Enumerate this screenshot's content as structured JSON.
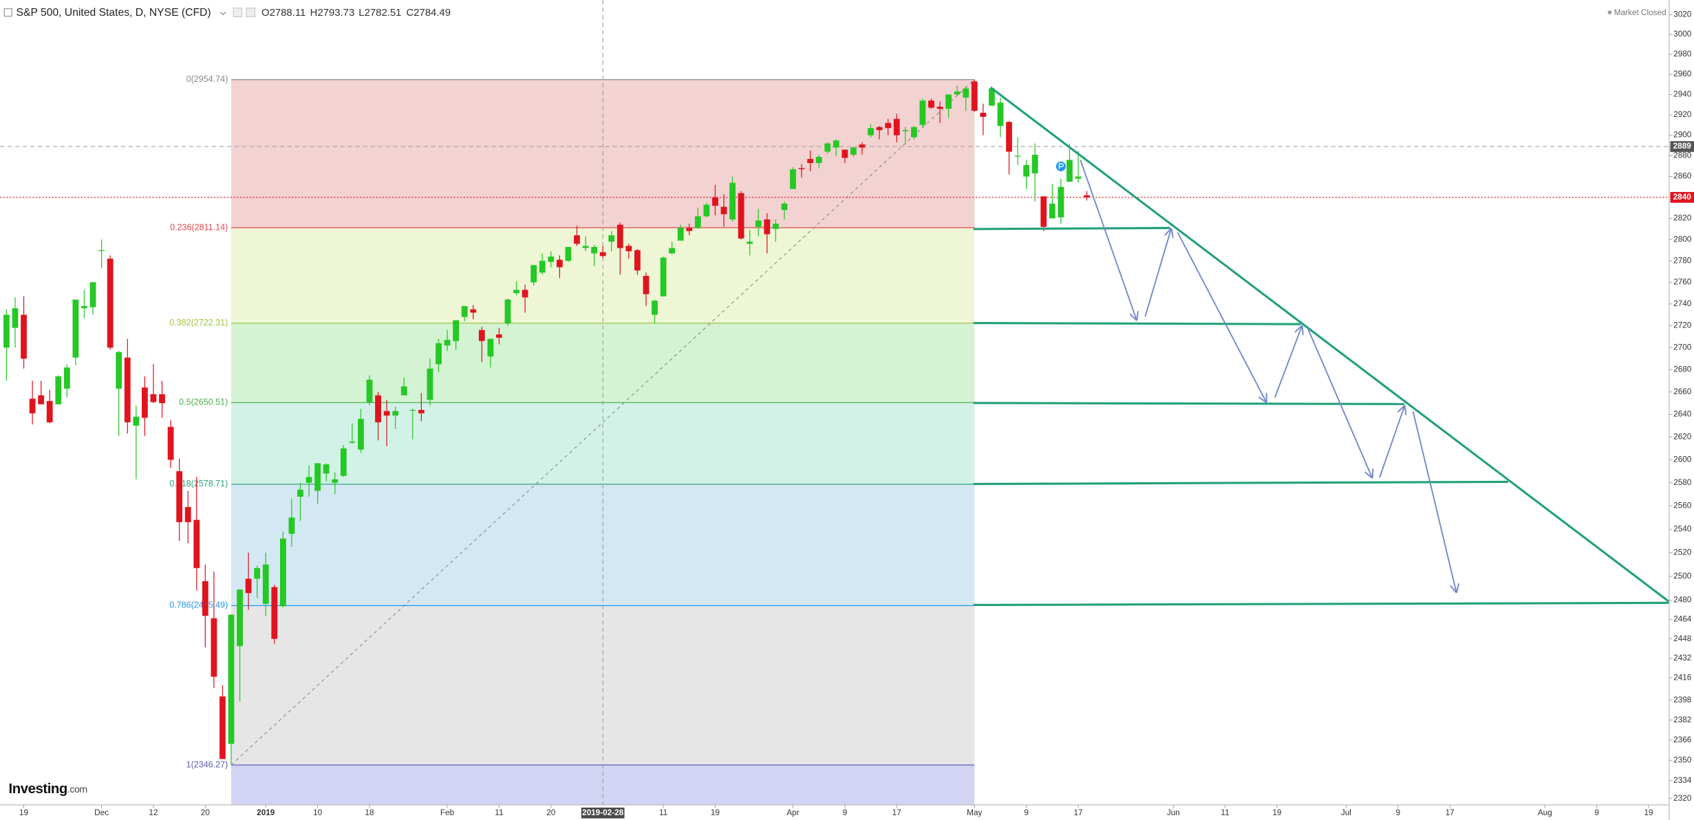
{
  "chart_data": {
    "type": "candlestick",
    "title": "S&P 500, United States, D, NYSE (CFD)",
    "legend_values": [
      "O2788.11",
      "H2793.73",
      "L2782.51",
      "C2784.49"
    ],
    "status": "Market Closed",
    "logo": {
      "name": "Investing",
      "suffix": ".com"
    },
    "up_color": "#25c825",
    "down_color": "#e0141e",
    "log": true,
    "grid": false,
    "ylim": [
      2315,
      3035
    ],
    "yticks": [
      3020,
      3000,
      2980,
      2960,
      2940,
      2920,
      2900,
      2880,
      2860,
      2820,
      2800,
      2780,
      2760,
      2740,
      2720,
      2700,
      2680,
      2660,
      2640,
      2620,
      2600,
      2580,
      2560,
      2540,
      2520,
      2500,
      2480,
      2464,
      2448,
      2432,
      2416,
      2398,
      2382,
      2366,
      2350,
      2334,
      2320
    ],
    "xticks": [
      {
        "value": "2018-11-19",
        "label": "19"
      },
      {
        "value": "2018-12-03",
        "label": "Dec"
      },
      {
        "value": "2018-12-12",
        "label": "12"
      },
      {
        "value": "2018-12-20",
        "label": "20"
      },
      {
        "value": "2019-01-02",
        "label": "2019"
      },
      {
        "value": "2019-01-10",
        "label": "10"
      },
      {
        "value": "2019-01-18",
        "label": "18"
      },
      {
        "value": "2019-02-01",
        "label": "Feb"
      },
      {
        "value": "2019-02-11",
        "label": "11"
      },
      {
        "value": "2019-02-20",
        "label": "20"
      },
      {
        "value": "2019-03-11",
        "label": "11"
      },
      {
        "value": "2019-03-19",
        "label": "19"
      },
      {
        "value": "2019-04-01",
        "label": "Apr"
      },
      {
        "value": "2019-04-09",
        "label": "9"
      },
      {
        "value": "2019-04-17",
        "label": "17"
      },
      {
        "value": "2019-05-01",
        "label": "May"
      },
      {
        "value": "2019-05-09",
        "label": "9"
      },
      {
        "value": "2019-05-17",
        "label": "17"
      },
      {
        "value": "2019-06-03",
        "label": "Jun"
      },
      {
        "value": "2019-06-11",
        "label": "11"
      },
      {
        "value": "2019-06-19",
        "label": "19"
      },
      {
        "value": "2019-07-01",
        "label": "Jul"
      },
      {
        "value": "2019-07-09",
        "label": "9"
      },
      {
        "value": "2019-07-17",
        "label": "17"
      },
      {
        "value": "2019-08-01",
        "label": "Aug"
      },
      {
        "value": "2019-08-09",
        "label": "9"
      },
      {
        "value": "2019-08-19",
        "label": "19"
      }
    ],
    "crosshair": {
      "x": "2019-02-28",
      "y": 2889
    },
    "last_price": 2840,
    "fib": {
      "start": "2018-12-26",
      "end": "2019-05-01",
      "levels": [
        {
          "value": 2954.74,
          "label": "0(2954.74)",
          "color": "#888888",
          "fill": "#f3d2d2"
        },
        {
          "value": 2811.14,
          "label": "0.236(2811.14)",
          "color": "#e0474c",
          "fill": "#eef6d6"
        },
        {
          "value": 2722.31,
          "label": "0.382(2722.31)",
          "color": "#9bc53d",
          "fill": "#d4f3d2"
        },
        {
          "value": 2650.51,
          "label": "0.5(2650.51)",
          "color": "#4caf50",
          "fill": "#d3f2e7"
        },
        {
          "value": 2578.71,
          "label": "0.618(2578.71)",
          "color": "#2aa57a",
          "fill": "#d4e8f3"
        },
        {
          "value": 2475.49,
          "label": "0.786(2475.49)",
          "color": "#2196f3",
          "fill": "#e6e6e6"
        },
        {
          "value": 2346.27,
          "label": "1(2346.27)",
          "color": "#5c5cb8",
          "fill": "#d3d3f4"
        }
      ]
    },
    "x": [
      "2018-11-15",
      "2018-11-16",
      "2018-11-19",
      "2018-11-20",
      "2018-11-21",
      "2018-11-23",
      "2018-11-26",
      "2018-11-27",
      "2018-11-28",
      "2018-11-29",
      "2018-11-30",
      "2018-12-03",
      "2018-12-04",
      "2018-12-06",
      "2018-12-07",
      "2018-12-10",
      "2018-12-11",
      "2018-12-12",
      "2018-12-13",
      "2018-12-14",
      "2018-12-17",
      "2018-12-18",
      "2018-12-19",
      "2018-12-20",
      "2018-12-21",
      "2018-12-24",
      "2018-12-26",
      "2018-12-27",
      "2018-12-28",
      "2018-12-31",
      "2019-01-02",
      "2019-01-03",
      "2019-01-04",
      "2019-01-07",
      "2019-01-08",
      "2019-01-09",
      "2019-01-10",
      "2019-01-11",
      "2019-01-14",
      "2019-01-15",
      "2019-01-16",
      "2019-01-17",
      "2019-01-18",
      "2019-01-22",
      "2019-01-23",
      "2019-01-24",
      "2019-01-25",
      "2019-01-28",
      "2019-01-29",
      "2019-01-30",
      "2019-01-31",
      "2019-02-01",
      "2019-02-04",
      "2019-02-05",
      "2019-02-06",
      "2019-02-07",
      "2019-02-08",
      "2019-02-11",
      "2019-02-12",
      "2019-02-13",
      "2019-02-14",
      "2019-02-15",
      "2019-02-19",
      "2019-02-20",
      "2019-02-21",
      "2019-02-22",
      "2019-02-25",
      "2019-02-26",
      "2019-02-27",
      "2019-02-28",
      "2019-03-01",
      "2019-03-04",
      "2019-03-05",
      "2019-03-06",
      "2019-03-07",
      "2019-03-08",
      "2019-03-11",
      "2019-03-12",
      "2019-03-13",
      "2019-03-14",
      "2019-03-15",
      "2019-03-18",
      "2019-03-19",
      "2019-03-20",
      "2019-03-21",
      "2019-03-22",
      "2019-03-25",
      "2019-03-26",
      "2019-03-27",
      "2019-03-28",
      "2019-03-29",
      "2019-04-01",
      "2019-04-02",
      "2019-04-03",
      "2019-04-04",
      "2019-04-05",
      "2019-04-08",
      "2019-04-09",
      "2019-04-10",
      "2019-04-11",
      "2019-04-12",
      "2019-04-15",
      "2019-04-16",
      "2019-04-17",
      "2019-04-18",
      "2019-04-22",
      "2019-04-23",
      "2019-04-24",
      "2019-04-25",
      "2019-04-26",
      "2019-04-29",
      "2019-04-30",
      "2019-05-01",
      "2019-05-02",
      "2019-05-03",
      "2019-05-06",
      "2019-05-07",
      "2019-05-08",
      "2019-05-09",
      "2019-05-10",
      "2019-05-13",
      "2019-05-14",
      "2019-05-15",
      "2019-05-16",
      "2019-05-17",
      "2019-05-20"
    ],
    "open": [
      2700,
      2718,
      2730,
      2654,
      2657,
      2652,
      2649,
      2663,
      2691,
      2736,
      2737,
      2790,
      2782,
      2663,
      2691,
      2630,
      2664,
      2658,
      2658,
      2629,
      2590,
      2559,
      2548,
      2496,
      2465,
      2401,
      2363,
      2442,
      2498,
      2498,
      2477,
      2491,
      2475,
      2536,
      2568,
      2580,
      2573,
      2588,
      2580,
      2586,
      2615,
      2609,
      2651,
      2657,
      2643,
      2639,
      2657,
      2644,
      2644,
      2653,
      2685,
      2702,
      2706,
      2728,
      2735,
      2716,
      2692,
      2712,
      2722,
      2750,
      2753,
      2760,
      2769,
      2779,
      2781,
      2780,
      2804,
      2792,
      2787,
      2788.11,
      2798,
      2814,
      2794,
      2790,
      2766,
      2730,
      2747,
      2787,
      2799,
      2811,
      2811,
      2822,
      2840,
      2831,
      2819,
      2844,
      2796,
      2812,
      2819,
      2810,
      2828,
      2848,
      2868,
      2877,
      2873,
      2884,
      2888,
      2886,
      2881,
      2891,
      2900,
      2908,
      2912,
      2916,
      2904,
      2898,
      2910,
      2934,
      2928,
      2926,
      2940,
      2937,
      2953,
      2922,
      2929,
      2909,
      2913,
      2880,
      2860,
      2863,
      2841,
      2820,
      2821,
      2855,
      2858,
      2842
    ],
    "high": [
      2735,
      2746,
      2747,
      2670,
      2670,
      2662,
      2675,
      2685,
      2744,
      2753,
      2760,
      2800,
      2785,
      2697,
      2708,
      2648,
      2674,
      2685,
      2670,
      2635,
      2601,
      2573,
      2585,
      2510,
      2504,
      2410,
      2468,
      2489,
      2520,
      2509,
      2520,
      2493,
      2538,
      2566,
      2580,
      2595,
      2597,
      2597,
      2589,
      2613,
      2632,
      2645,
      2675,
      2660,
      2653,
      2647,
      2673,
      2645,
      2659,
      2690,
      2708,
      2716,
      2724,
      2738,
      2739,
      2719,
      2708,
      2718,
      2745,
      2761,
      2758,
      2776,
      2787,
      2789,
      2785,
      2793,
      2813,
      2803,
      2795,
      2793.73,
      2808,
      2816,
      2796,
      2791,
      2769,
      2744,
      2784,
      2798,
      2814,
      2815,
      2830,
      2835,
      2852,
      2843,
      2860,
      2846,
      2809,
      2829,
      2825,
      2819,
      2836,
      2869,
      2872,
      2885,
      2881,
      2893,
      2896,
      2886,
      2889,
      2893,
      2911,
      2909,
      2916,
      2921,
      2908,
      2909,
      2936,
      2936,
      2933,
      2940,
      2949,
      2948,
      2954.74,
      2931,
      2948,
      2937,
      2914,
      2898,
      2876,
      2892,
      2841,
      2853,
      2858,
      2892,
      2885,
      2846
    ],
    "low": [
      2670,
      2700,
      2681,
      2631,
      2649,
      2632,
      2649,
      2655,
      2684,
      2727,
      2730,
      2773,
      2698,
      2621,
      2623,
      2583,
      2621,
      2650,
      2637,
      2593,
      2530,
      2528,
      2488,
      2441,
      2408,
      2351,
      2346.27,
      2397,
      2472,
      2482,
      2467,
      2444,
      2474,
      2525,
      2547,
      2568,
      2562,
      2581,
      2570,
      2585,
      2614,
      2606,
      2648,
      2617,
      2612,
      2627,
      2657,
      2618,
      2634,
      2648,
      2678,
      2697,
      2698,
      2724,
      2726,
      2687,
      2682,
      2703,
      2720,
      2748,
      2732,
      2757,
      2767,
      2774,
      2764,
      2779,
      2794,
      2789,
      2775,
      2782.51,
      2789,
      2767,
      2782,
      2767,
      2738,
      2722,
      2747,
      2786,
      2799,
      2804,
      2810,
      2821,
      2823,
      2812,
      2817,
      2800,
      2785,
      2803,
      2787,
      2798,
      2819,
      2848,
      2859,
      2865,
      2868,
      2882,
      2880,
      2873,
      2879,
      2881,
      2898,
      2896,
      2900,
      2893,
      2891,
      2896,
      2908,
      2926,
      2912,
      2917,
      2939,
      2924,
      2923,
      2900,
      2929,
      2898,
      2862,
      2871,
      2848,
      2836,
      2808,
      2820,
      2815,
      2855,
      2854,
      2837
    ],
    "close": [
      2730,
      2736,
      2690,
      2641,
      2649,
      2633,
      2674,
      2682,
      2744,
      2738,
      2760,
      2790,
      2700,
      2696,
      2633,
      2638,
      2637,
      2651,
      2650,
      2600,
      2546,
      2546,
      2507,
      2467,
      2417,
      2351,
      2468,
      2489,
      2486,
      2507,
      2510,
      2448,
      2532,
      2550,
      2574,
      2585,
      2597,
      2596,
      2583,
      2610,
      2616,
      2636,
      2671,
      2633,
      2639,
      2643,
      2665,
      2644,
      2641,
      2681,
      2704,
      2707,
      2725,
      2738,
      2732,
      2706,
      2708,
      2709,
      2744,
      2753,
      2746,
      2776,
      2780,
      2784,
      2774,
      2793,
      2796,
      2794,
      2793,
      2784.49,
      2804,
      2792,
      2789,
      2771,
      2749,
      2743,
      2783,
      2792,
      2811,
      2808,
      2822,
      2833,
      2832,
      2824,
      2854,
      2801,
      2798,
      2818,
      2805,
      2815,
      2834,
      2867,
      2867,
      2873,
      2879,
      2892,
      2895,
      2878,
      2888,
      2888,
      2907,
      2905,
      2907,
      2900,
      2905,
      2908,
      2934,
      2927,
      2926,
      2940,
      2943,
      2946,
      2924,
      2918,
      2946,
      2932,
      2884,
      2880,
      2871,
      2881,
      2812,
      2834,
      2850,
      2876,
      2860,
      2840
    ]
  }
}
